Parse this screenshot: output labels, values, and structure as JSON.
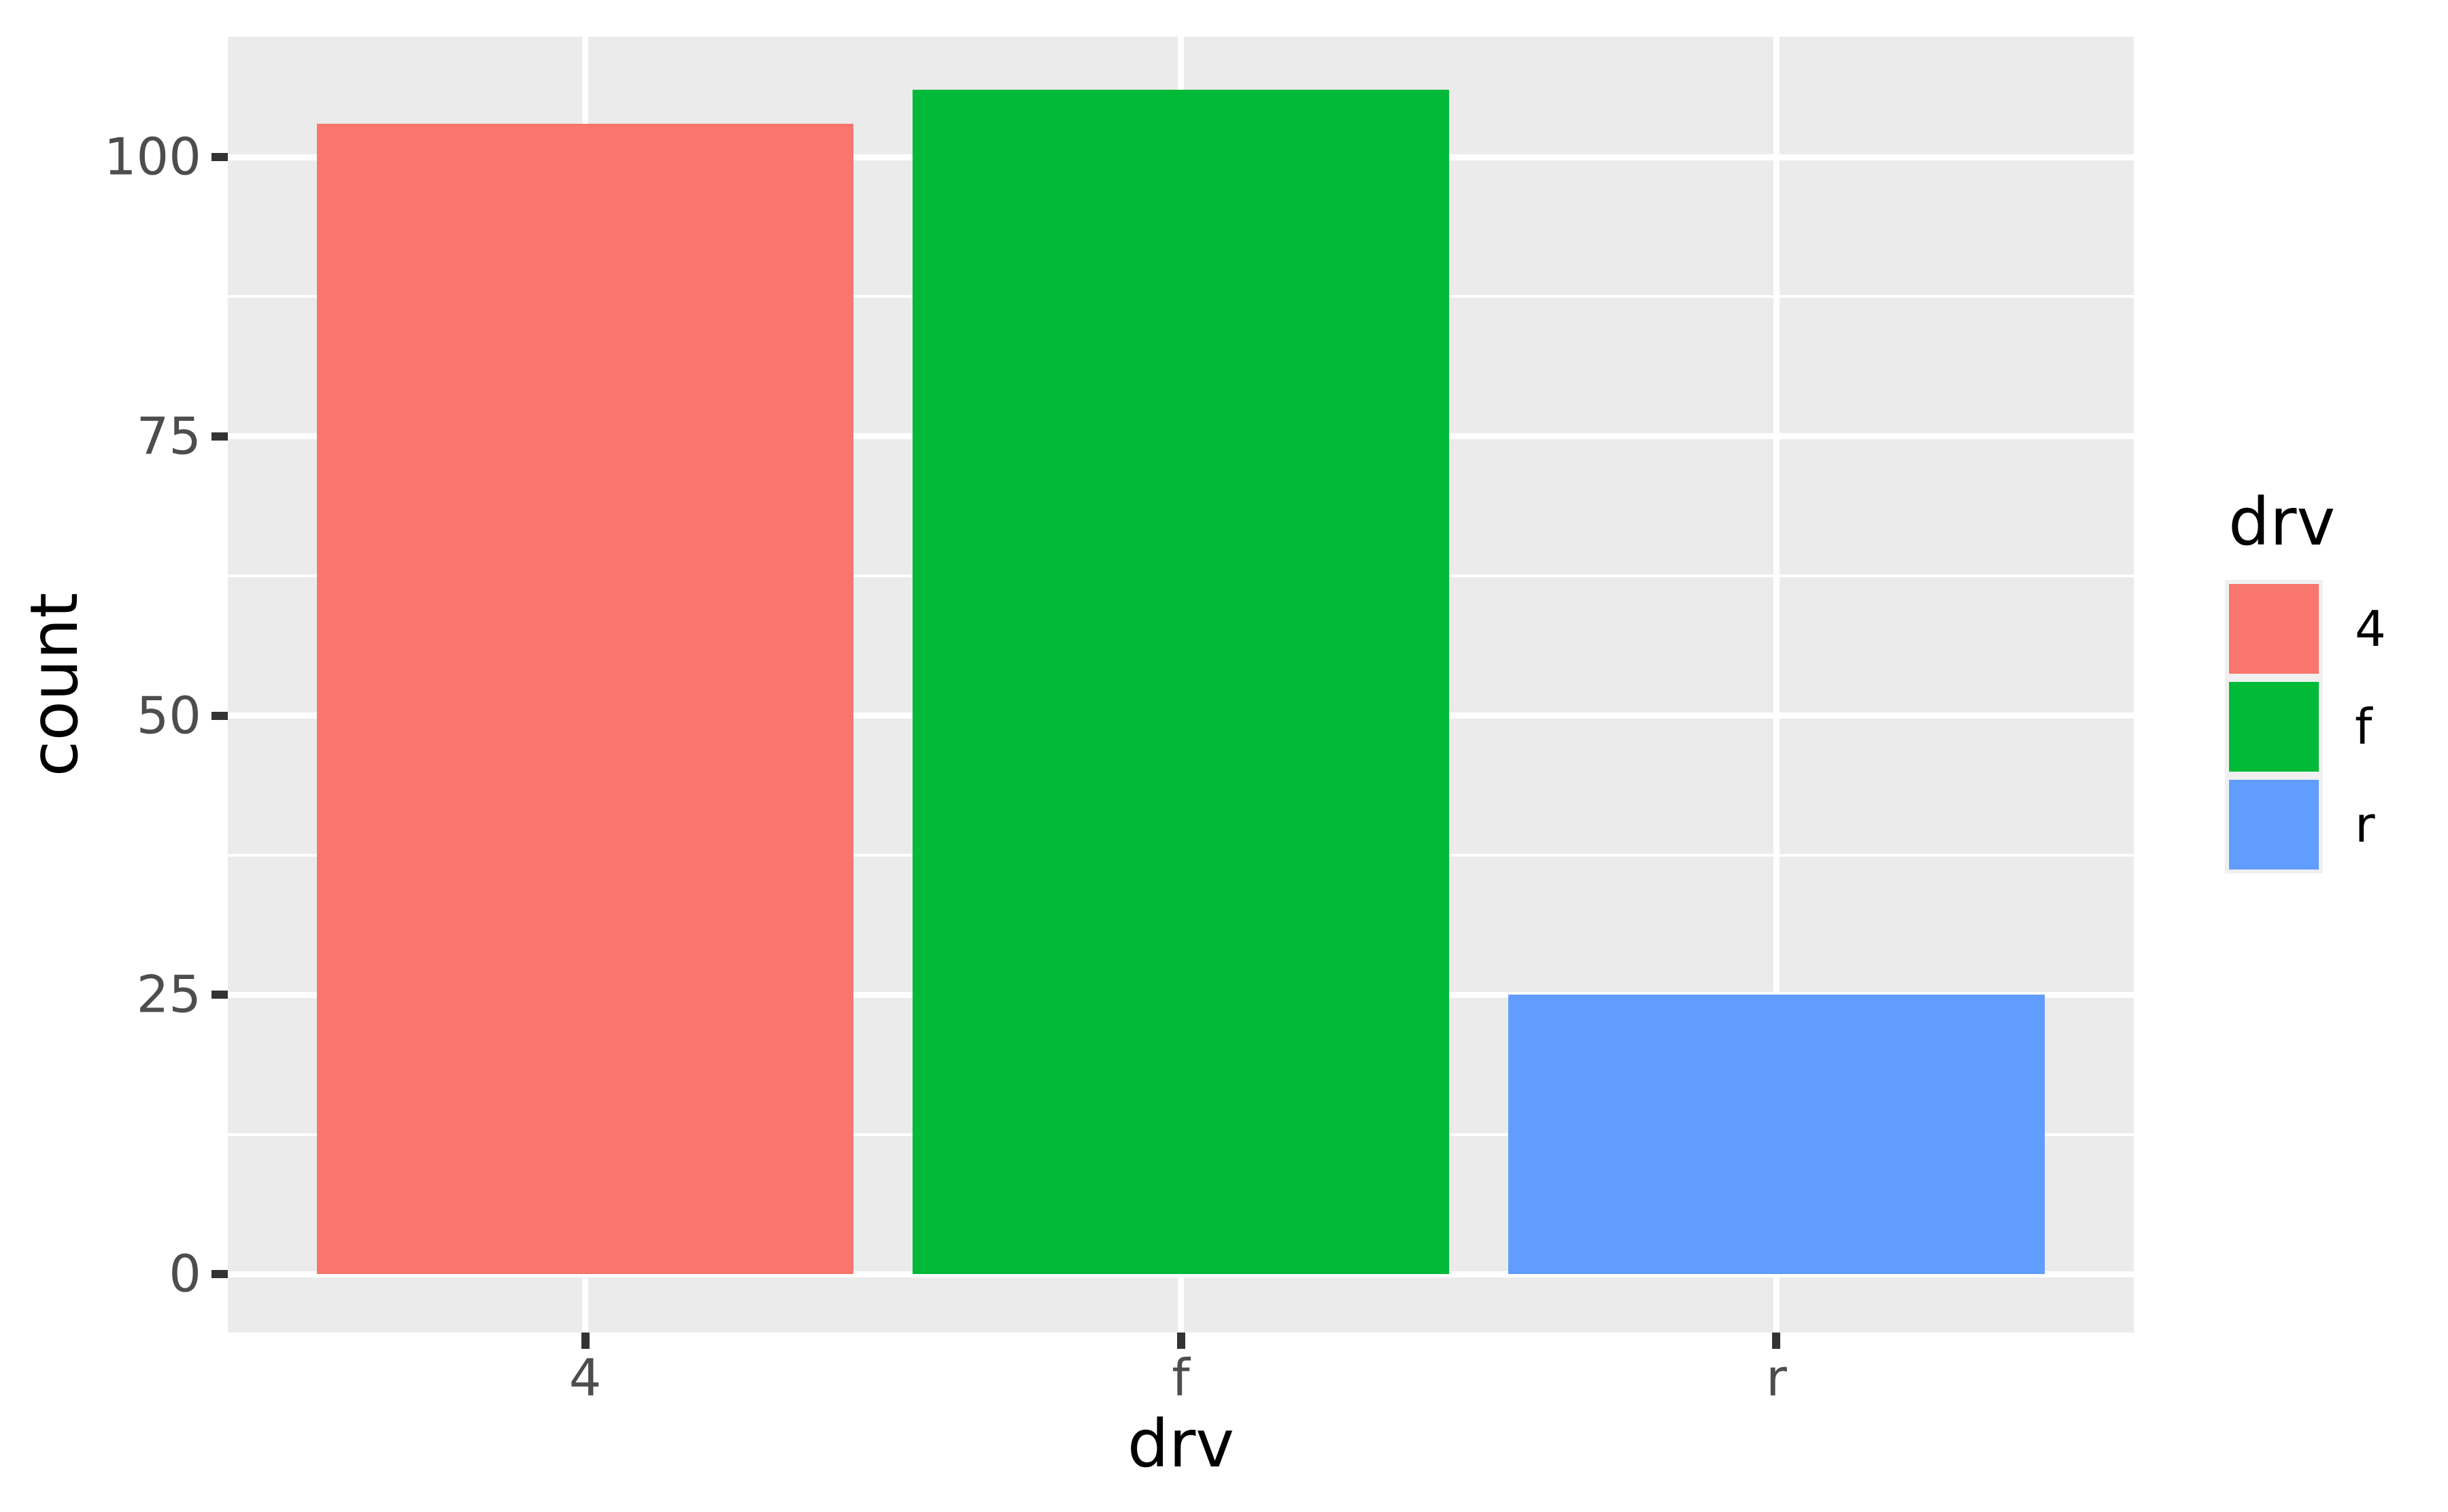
{
  "chart_data": {
    "type": "bar",
    "title": "",
    "categories": [
      "4",
      "f",
      "r"
    ],
    "values": [
      103,
      106,
      25
    ],
    "bar_colors": [
      "#F8766D",
      "#00BA38",
      "#619CFF"
    ],
    "xlabel": "drv",
    "ylabel": "count",
    "y_ticks": [
      0,
      25,
      50,
      75,
      100
    ],
    "y_tick_labels": [
      "0",
      "25",
      "50",
      "75",
      "100"
    ],
    "ylim": [
      -5.3,
      110.9
    ],
    "grid": {
      "major": "on",
      "minor": "on",
      "color": "#FFFFFF",
      "background": "#EBEBEB"
    },
    "legend": {
      "title": "drv",
      "position": "right",
      "entries": [
        {
          "label": "4",
          "color": "#F8766D"
        },
        {
          "label": "f",
          "color": "#00BA38"
        },
        {
          "label": "r",
          "color": "#619CFF"
        }
      ]
    }
  },
  "colors": {
    "panel_background": "#EBEBEB",
    "gridline": "#FFFFFF",
    "tick_mark": "#333333",
    "tick_label": "#4D4D4D",
    "axis_title": "#000000",
    "legend_key_background": "#F0F0F0",
    "page_background": "#FFFFFF"
  }
}
